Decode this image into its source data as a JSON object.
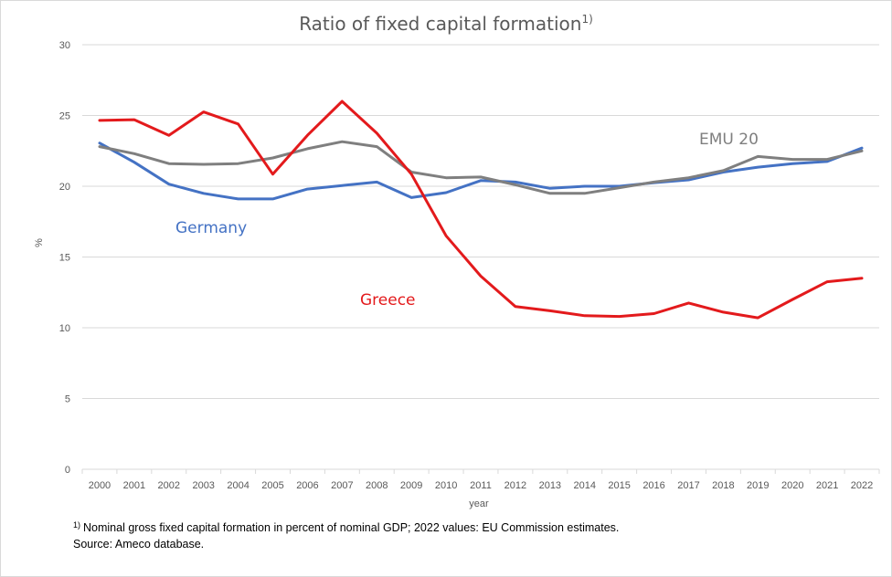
{
  "chart_data": {
    "type": "line",
    "title": "Ratio of fixed capital formation",
    "title_superscript": "1)",
    "xlabel": "year",
    "ylabel": "%",
    "ylim": [
      0,
      30
    ],
    "yticks": [
      "0",
      "5",
      "10",
      "15",
      "20",
      "25",
      "30"
    ],
    "grid": true,
    "categories": [
      "2000",
      "2001",
      "2002",
      "2003",
      "2004",
      "2005",
      "2006",
      "2007",
      "2008",
      "2009",
      "2010",
      "2011",
      "2012",
      "2013",
      "2014",
      "2015",
      "2016",
      "2017",
      "2018",
      "2019",
      "2020",
      "2021",
      "2022"
    ],
    "series": [
      {
        "name": "EMU 20",
        "color": "#7f7f7f",
        "values": [
          22.8,
          22.3,
          21.6,
          21.55,
          21.6,
          22.0,
          22.65,
          23.15,
          22.8,
          21.0,
          20.6,
          20.65,
          20.1,
          19.5,
          19.5,
          19.9,
          20.3,
          20.6,
          21.1,
          22.1,
          21.9,
          21.9,
          22.5
        ]
      },
      {
        "name": "Germany",
        "color": "#4472c4",
        "values": [
          23.05,
          21.7,
          20.15,
          19.5,
          19.1,
          19.1,
          19.8,
          20.05,
          20.3,
          19.2,
          19.55,
          20.4,
          20.3,
          19.85,
          20.0,
          20.0,
          20.25,
          20.45,
          21.0,
          21.35,
          21.6,
          21.75,
          22.7
        ]
      },
      {
        "name": "Greece",
        "color": "#e31a1c",
        "values": [
          24.65,
          24.7,
          23.6,
          25.25,
          24.4,
          20.85,
          23.6,
          26.0,
          23.75,
          20.85,
          16.5,
          13.65,
          11.5,
          11.2,
          10.85,
          10.8,
          11.0,
          11.75,
          11.1,
          10.7,
          12.0,
          13.25,
          13.5
        ]
      }
    ]
  },
  "footnote": {
    "marker": "1)",
    "text": "Nominal gross fixed capital formation in percent of nominal GDP; 2022 values: EU Commission estimates.",
    "source": "Source: Ameco database."
  }
}
